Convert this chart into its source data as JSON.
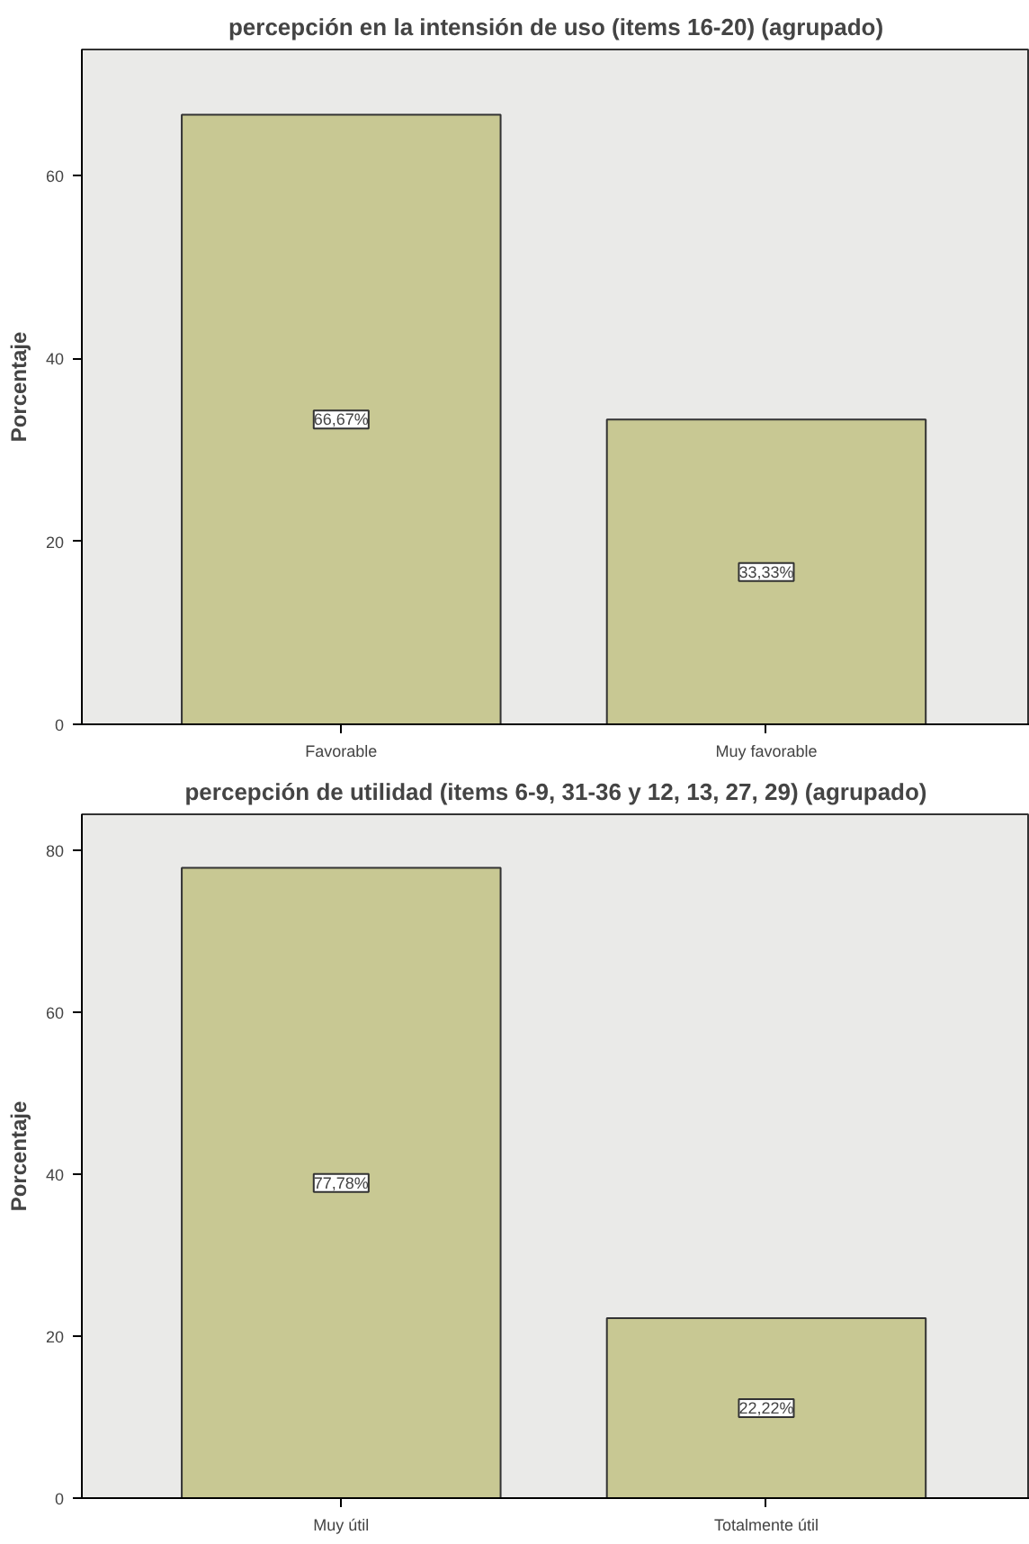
{
  "chart_data": [
    {
      "type": "bar",
      "title": "percepción en la intensión de uso (items 16-20) (agrupado)",
      "ylabel": "Porcentaje",
      "categories": [
        "Favorable",
        "Muy favorable"
      ],
      "values": [
        66.67,
        33.33
      ],
      "value_labels": [
        "66,67%",
        "33,33%"
      ],
      "color": "#c8c893",
      "ylim": [
        0,
        73.8
      ],
      "yticks": [
        0,
        20,
        40,
        60
      ],
      "grid": false
    },
    {
      "type": "bar",
      "title": "percepción de utilidad (items 6-9, 31-36 y 12, 13, 27, 29) (agrupado)",
      "ylabel": "Porcentaje",
      "categories": [
        "Muy útil",
        "Totalmente útil"
      ],
      "values": [
        77.78,
        22.22
      ],
      "value_labels": [
        "77,78%",
        "22,22%"
      ],
      "color": "#c8c893",
      "ylim": [
        0,
        84.4
      ],
      "yticks": [
        0,
        20,
        40,
        60,
        80
      ],
      "grid": false
    }
  ]
}
